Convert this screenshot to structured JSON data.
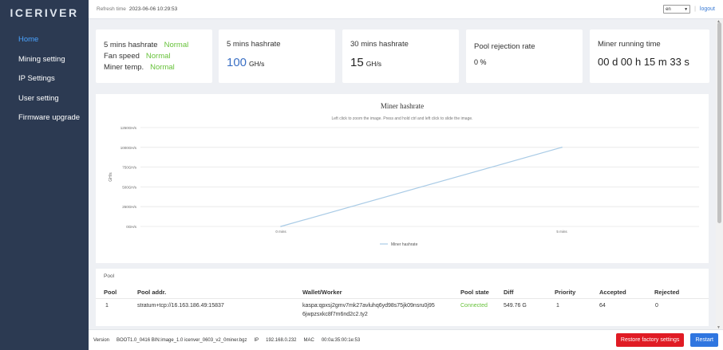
{
  "app": {
    "logo": "ICERIVER"
  },
  "sidebar": {
    "items": [
      {
        "label": "Home",
        "active": true
      },
      {
        "label": "Mining setting"
      },
      {
        "label": "IP Settings"
      },
      {
        "label": "User setting"
      },
      {
        "label": "Firmware upgrade"
      }
    ]
  },
  "topbar": {
    "refresh_label": "Refresh time",
    "refresh_time": "2023-06-06 10:29:53",
    "language": "en",
    "separator": "|",
    "logout": "logout"
  },
  "cards": {
    "status": {
      "rows": [
        {
          "label": "5 mins hashrate",
          "status": "Normal"
        },
        {
          "label": "Fan speed",
          "status": "Normal"
        },
        {
          "label": "Miner temp.",
          "status": "Normal"
        }
      ]
    },
    "hash5": {
      "title": "5 mins hashrate",
      "value": "100",
      "unit": "GH/s"
    },
    "hash30": {
      "title": "30 mins hashrate",
      "value": "15",
      "unit": "GH/s"
    },
    "rejection": {
      "title": "Pool rejection rate",
      "value": "0 %"
    },
    "runtime": {
      "title": "Miner running time",
      "value": "00 d 00 h 15 m 33 s"
    }
  },
  "chart_data": {
    "type": "line",
    "title": "Miner hashrate",
    "subtitle": "Left click to zoom the image. Press and hold ctrl and left click to slide the image.",
    "ylabel": "GH/s",
    "x": [
      "0 mins",
      "5 mins"
    ],
    "yticks": [
      "0GH/s",
      "250GH/s",
      "500GH/s",
      "750GH/s",
      "1000GH/s",
      "1250GH/s"
    ],
    "ylim": [
      0,
      1250
    ],
    "series": [
      {
        "name": "Miner hashrate",
        "values": [
          0,
          1000
        ],
        "color": "#a9cbe6"
      }
    ],
    "grid": true,
    "legend": "bottom"
  },
  "pool": {
    "label": "Pool",
    "headers": [
      "Pool",
      "Pool addr.",
      "Wallet/Worker",
      "Pool state",
      "Diff",
      "Priority",
      "Accepted",
      "Rejected"
    ],
    "rows": [
      {
        "pool": "1",
        "addr": "stratum+tcp://16.163.186.49:15837",
        "wallet1": "kaspa:qpxsj2gmv7mk27avluhq6yd98s75jk09nsru0j95",
        "wallet2": "6jwpzsxkc8f7m6nd2c2.ty2",
        "state": "Connected",
        "diff": "549.76 G",
        "priority": "1",
        "accepted": "64",
        "rejected": "0"
      }
    ]
  },
  "footer": {
    "version": "Version",
    "version_value": "BOOT1.0_0416 BIN:image_1.0 icenver_0603_v2_0miner.bgz",
    "ip_label": "IP",
    "ip": "192.168.0.232",
    "mac_label": "MAC",
    "mac": "00:0a:35:00:1e:53",
    "restore": "Restore factory settings",
    "restart": "Restart"
  },
  "colors": {
    "sidebar": "#2c3a52",
    "active": "#4aa3ff",
    "ok": "#67c23a",
    "danger": "#e01b24",
    "primary": "#2f76e0"
  }
}
